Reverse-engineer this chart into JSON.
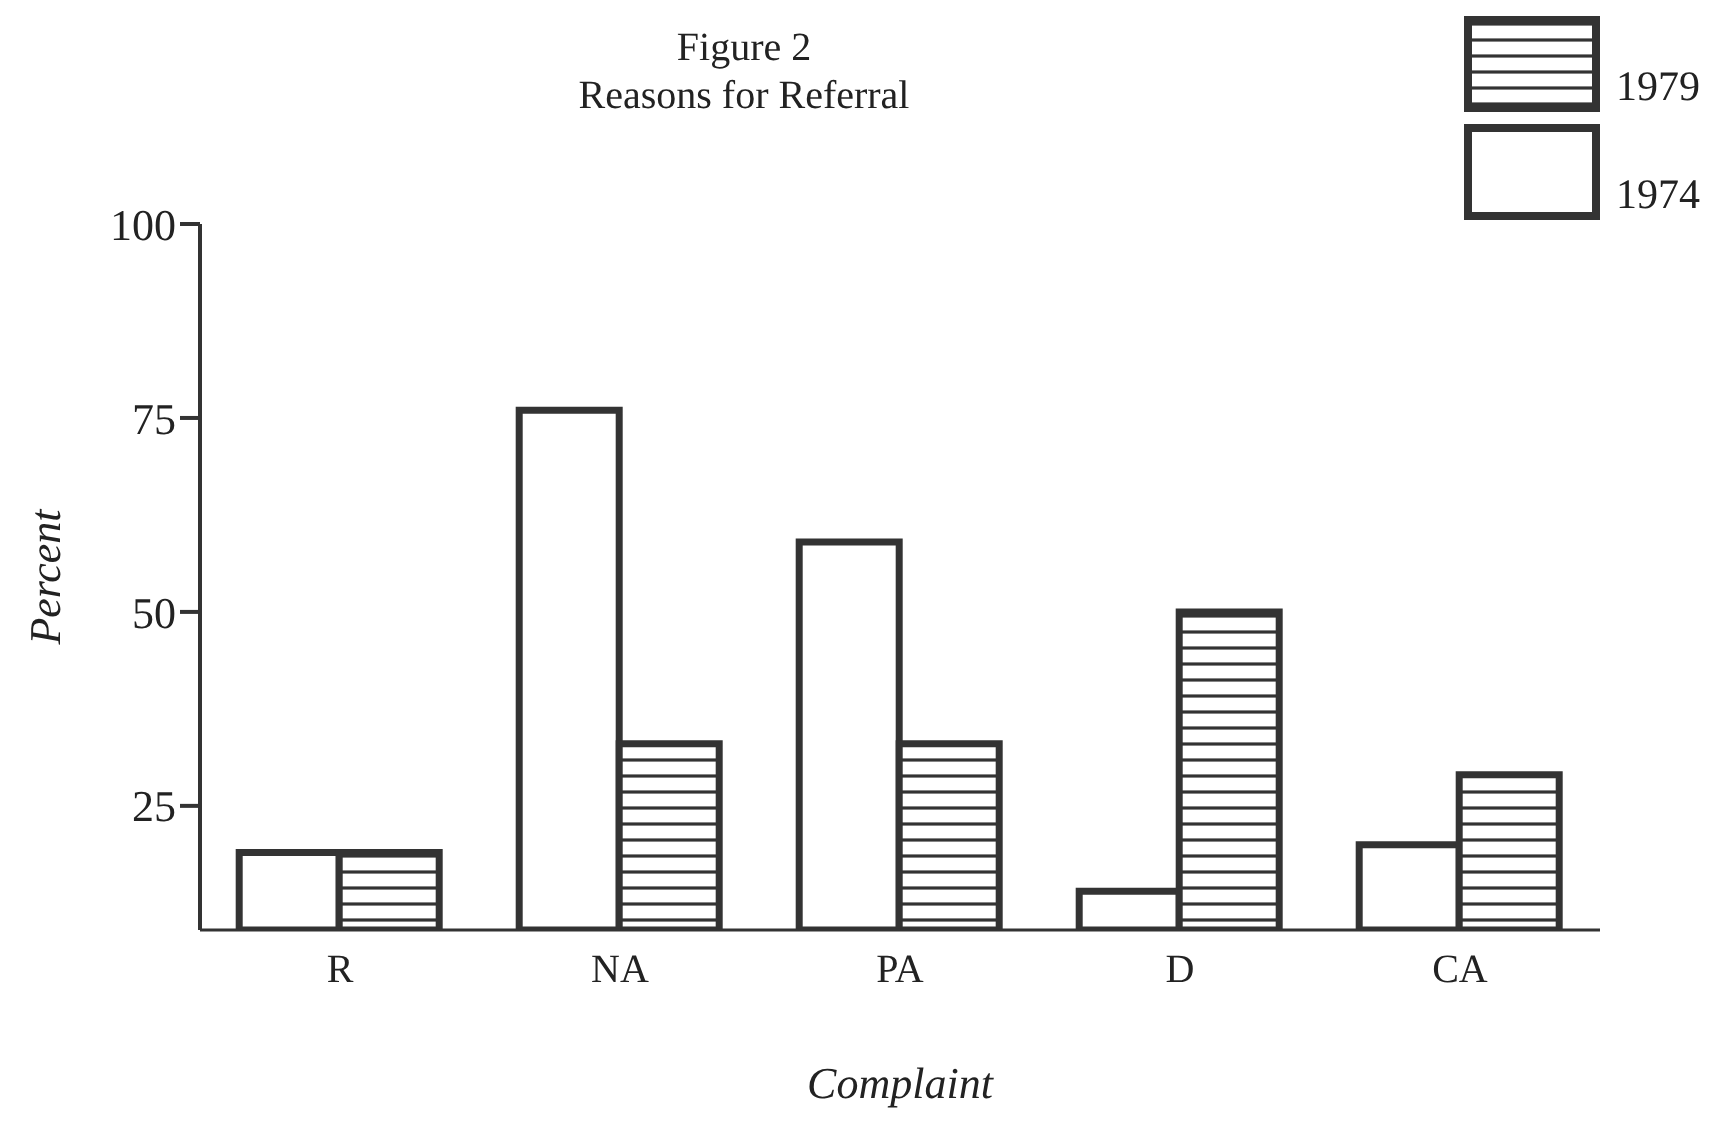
{
  "chart_data": {
    "type": "bar",
    "title": "Figure 2",
    "subtitle": "Reasons for Referral",
    "xlabel": "Complaint",
    "ylabel": "Percent",
    "categories": [
      "R",
      "NA",
      "PA",
      "D",
      "CA"
    ],
    "series": [
      {
        "name": "1974",
        "color": "#ffffff",
        "values": [
          19,
          76,
          59,
          14,
          20
        ]
      },
      {
        "name": "1979",
        "color": "#333333",
        "values": [
          19,
          33,
          33,
          50,
          29
        ]
      }
    ],
    "ylim": [
      9,
      100
    ],
    "yticks": [
      25,
      50,
      75,
      100
    ],
    "grid": false,
    "legend": "top right"
  }
}
